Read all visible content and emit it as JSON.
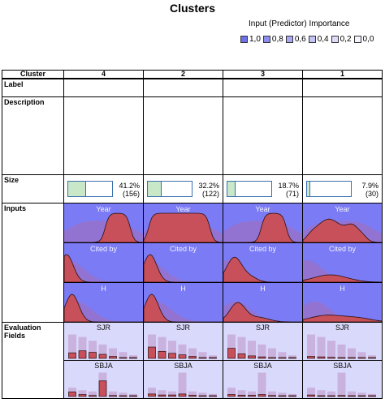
{
  "title": "Clusters",
  "importance": {
    "title": "Input (Predictor) Importance",
    "legend": [
      {
        "label": "1,0",
        "color": "#6f6fe8"
      },
      {
        "label": "0,8",
        "color": "#8d8dee"
      },
      {
        "label": "0,6",
        "color": "#a9a9f2"
      },
      {
        "label": "0,4",
        "color": "#c4c4f6"
      },
      {
        "label": "0,2",
        "color": "#dcdcfa"
      },
      {
        "label": "0,0",
        "color": "#f4f4fe"
      }
    ]
  },
  "table": {
    "corner": "Cluster",
    "clusters": [
      "4",
      "2",
      "3",
      "1"
    ],
    "rows": {
      "label": "Label",
      "description": "Description",
      "size": "Size",
      "inputs": "Inputs",
      "evaluation": "Evaluation Fields"
    },
    "sizes": [
      {
        "pct": "41.2%",
        "n": "(156)",
        "fraction": 0.412
      },
      {
        "pct": "32.2%",
        "n": "(122)",
        "fraction": 0.322
      },
      {
        "pct": "18.7%",
        "n": "(71)",
        "fraction": 0.187
      },
      {
        "pct": "7.9%",
        "n": "(30)",
        "fraction": 0.079
      }
    ],
    "inputs": [
      {
        "field": "Year",
        "cells": [
          "Year",
          "Year",
          "Year",
          "Year"
        ]
      },
      {
        "field": "Cited by",
        "cells": [
          "Cited by",
          "Cited by",
          "Cited by",
          "Cited by"
        ]
      },
      {
        "field": "H",
        "cells": [
          "H",
          "H",
          "H",
          "H"
        ]
      }
    ],
    "evaluation": [
      {
        "field": "SJR",
        "cells": [
          "SJR",
          "SJR",
          "SJR",
          "SJR"
        ]
      },
      {
        "field": "SBJA",
        "cells": [
          "SBJA",
          "SBJA",
          "SBJA",
          "SBJA"
        ]
      }
    ]
  },
  "colors": {
    "input_bg": "#7b7bf5",
    "eval_bg": "#d9d9fb",
    "density_fill": "#c8505a",
    "overall_fill": "#b06aa8",
    "size_fill": "#c8e8c8",
    "size_border": "#3a6fb0"
  }
}
